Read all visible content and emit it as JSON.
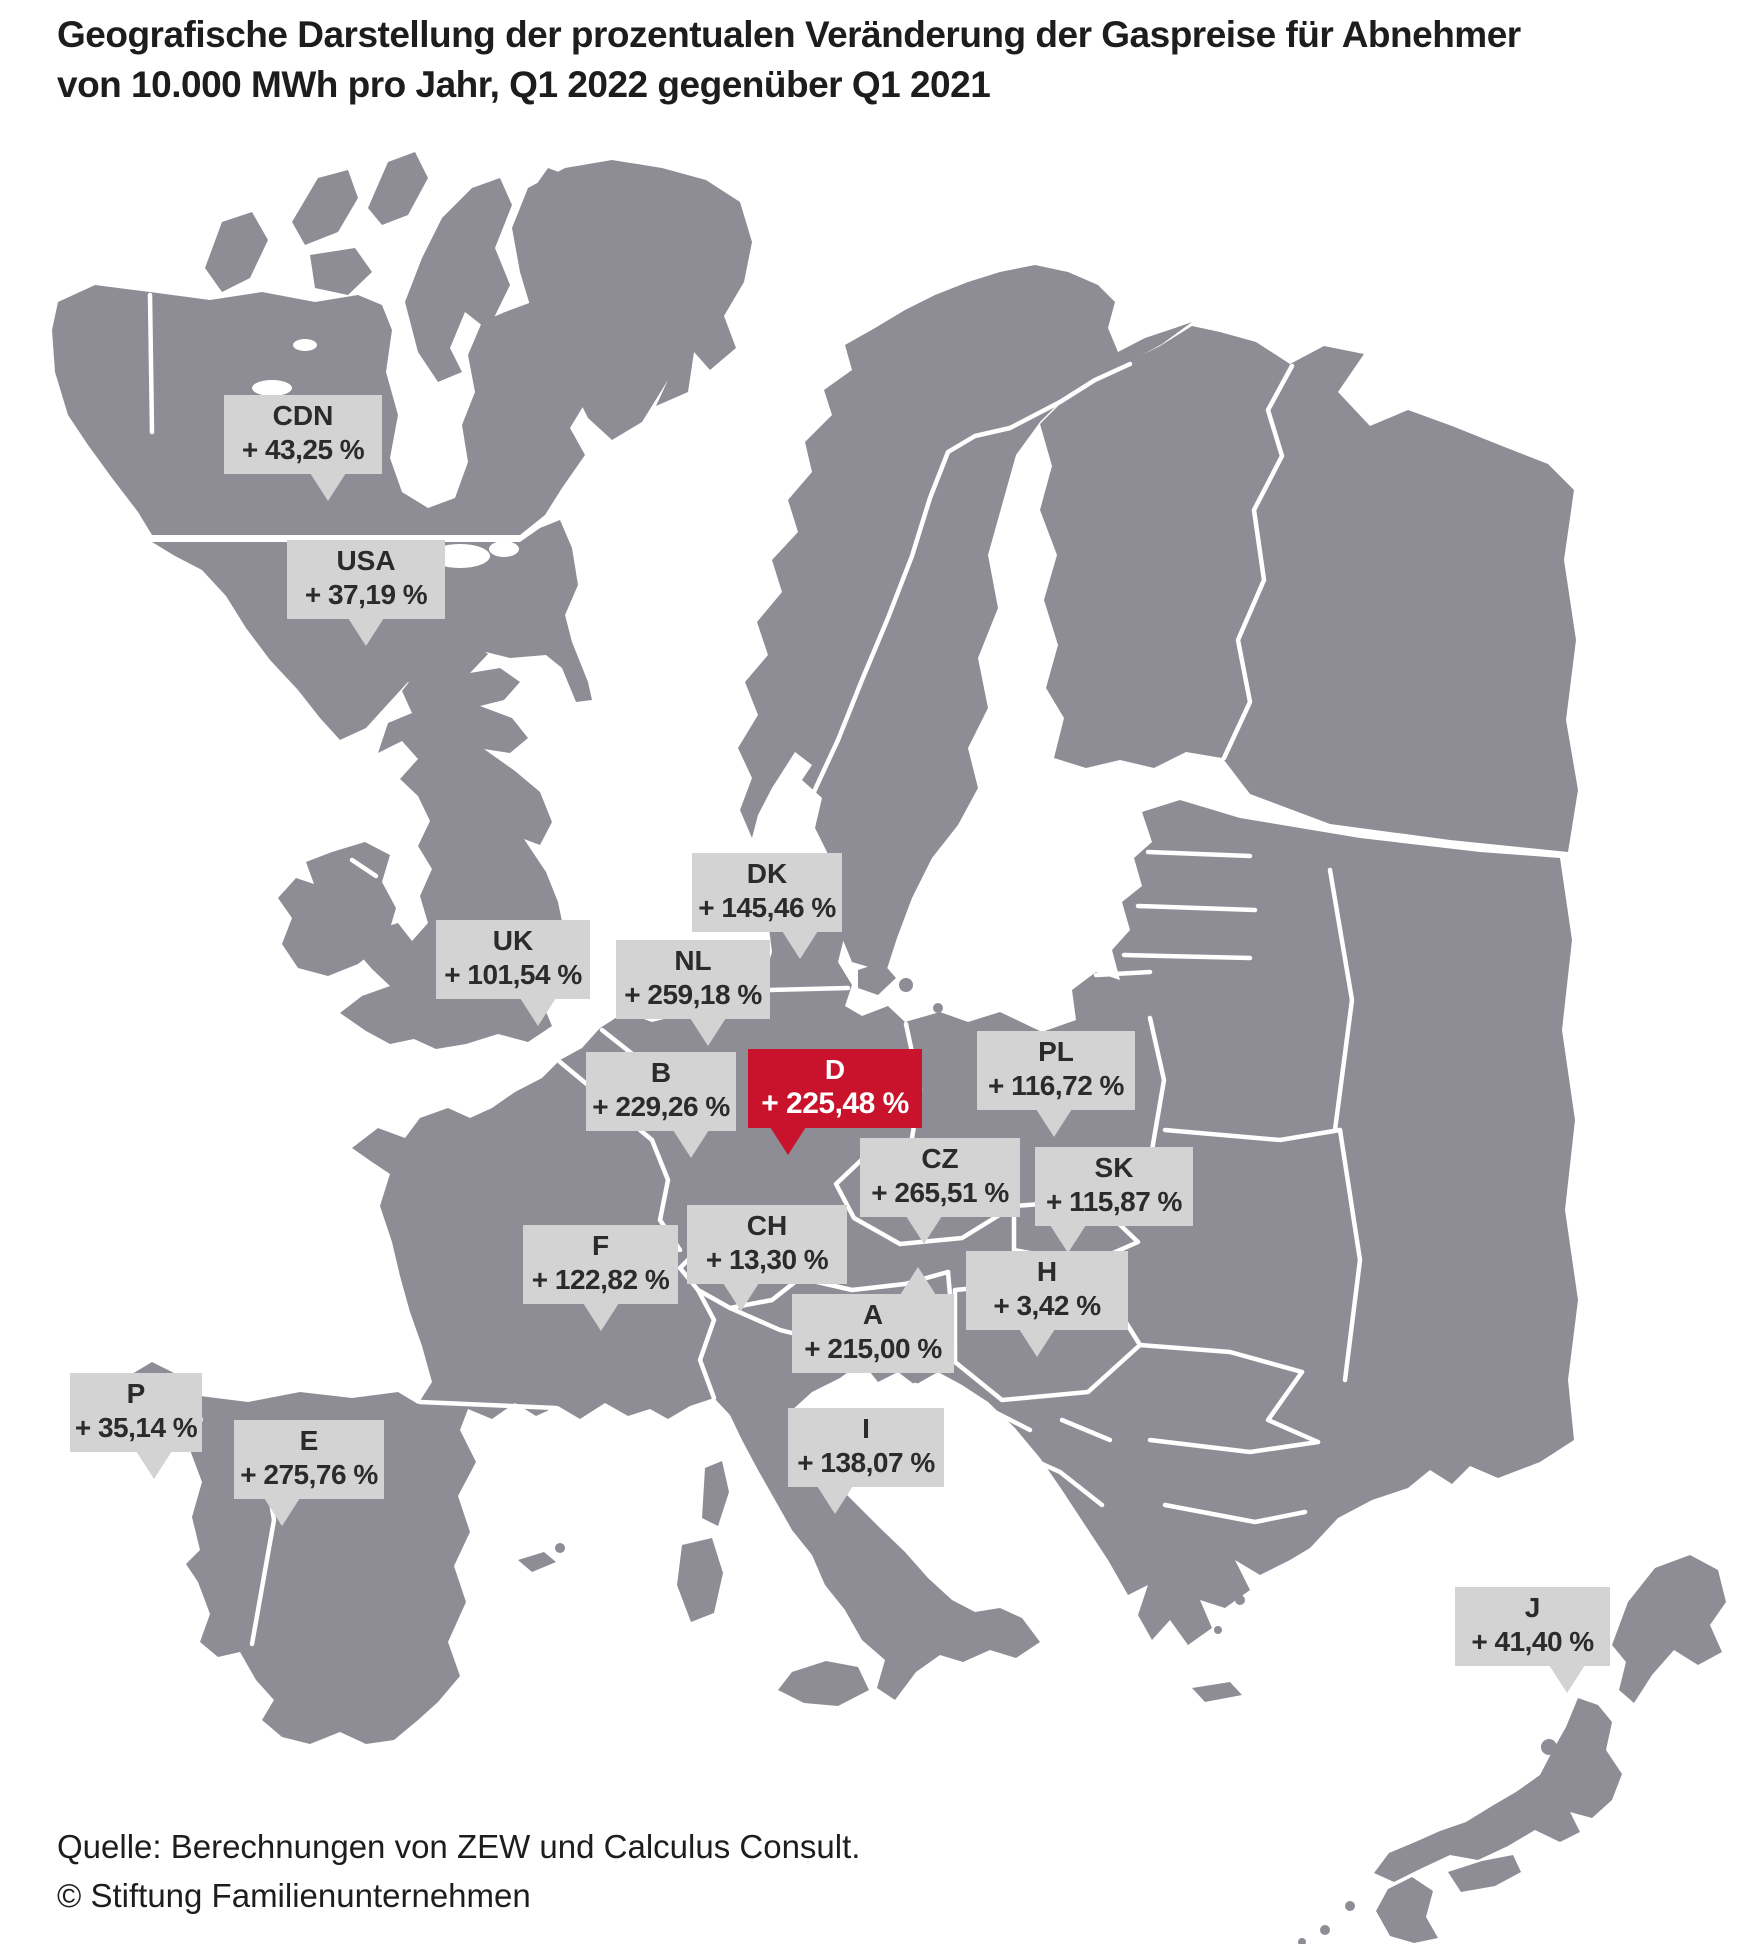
{
  "title": {
    "line1": "Geografische Darstellung der prozentualen Veränderung der Gaspreise für Abnehmer",
    "line2": "von 10.000 MWh pro Jahr, Q1 2022 gegenüber Q1 2021"
  },
  "source": {
    "line1": "Quelle: Berechnungen von ZEW und Calculus Consult.",
    "line2": "© Stiftung Familienunternehmen"
  },
  "colors": {
    "land": "#8e8d95",
    "sea": "#ffffff",
    "label_background": "#d3d3d4",
    "label_text": "#2b2b29",
    "highlight_background": "#c9122c",
    "highlight_text": "#ffffff"
  },
  "labels": [
    {
      "code": "CDN",
      "country": "Canada",
      "value": "+ 43,25 %",
      "highlight": false
    },
    {
      "code": "USA",
      "country": "United States",
      "value": "+ 37,19 %",
      "highlight": false
    },
    {
      "code": "DK",
      "country": "Denmark",
      "value": "+ 145,46 %",
      "highlight": false
    },
    {
      "code": "UK",
      "country": "United Kingdom",
      "value": "+ 101,54 %",
      "highlight": false
    },
    {
      "code": "NL",
      "country": "Netherlands",
      "value": "+ 259,18 %",
      "highlight": false
    },
    {
      "code": "B",
      "country": "Belgium",
      "value": "+ 229,26 %",
      "highlight": false
    },
    {
      "code": "D",
      "country": "Germany",
      "value": "+ 225,48 %",
      "highlight": true
    },
    {
      "code": "PL",
      "country": "Poland",
      "value": "+ 116,72 %",
      "highlight": false
    },
    {
      "code": "CZ",
      "country": "Czech Republic",
      "value": "+ 265,51 %",
      "highlight": false
    },
    {
      "code": "SK",
      "country": "Slovakia",
      "value": "+ 115,87 %",
      "highlight": false
    },
    {
      "code": "F",
      "country": "France",
      "value": "+ 122,82 %",
      "highlight": false
    },
    {
      "code": "CH",
      "country": "Switzerland",
      "value": "+ 13,30 %",
      "highlight": false
    },
    {
      "code": "A",
      "country": "Austria",
      "value": "+ 215,00 %",
      "highlight": false
    },
    {
      "code": "H",
      "country": "Hungary",
      "value": "+ 3,42 %",
      "highlight": false
    },
    {
      "code": "P",
      "country": "Portugal",
      "value": "+ 35,14 %",
      "highlight": false
    },
    {
      "code": "E",
      "country": "Spain",
      "value": "+ 275,76 %",
      "highlight": false
    },
    {
      "code": "I",
      "country": "Italy",
      "value": "+ 138,07 %",
      "highlight": false
    },
    {
      "code": "J",
      "country": "Japan",
      "value": "+ 41,40 %",
      "highlight": false
    }
  ],
  "chart_data": {
    "type": "map",
    "title": "Geografische Darstellung der prozentualen Veränderung der Gaspreise für Abnehmer von 10.000 MWh pro Jahr, Q1 2022 gegenüber Q1 2021",
    "unit": "percent change Q1 2022 vs Q1 2021",
    "highlighted": "D",
    "series": [
      {
        "code": "CDN",
        "country": "Canada",
        "value_pct": 43.25
      },
      {
        "code": "USA",
        "country": "United States",
        "value_pct": 37.19
      },
      {
        "code": "DK",
        "country": "Denmark",
        "value_pct": 145.46
      },
      {
        "code": "UK",
        "country": "United Kingdom",
        "value_pct": 101.54
      },
      {
        "code": "NL",
        "country": "Netherlands",
        "value_pct": 259.18
      },
      {
        "code": "B",
        "country": "Belgium",
        "value_pct": 229.26
      },
      {
        "code": "D",
        "country": "Germany",
        "value_pct": 225.48
      },
      {
        "code": "PL",
        "country": "Poland",
        "value_pct": 116.72
      },
      {
        "code": "CZ",
        "country": "Czech Republic",
        "value_pct": 265.51
      },
      {
        "code": "SK",
        "country": "Slovakia",
        "value_pct": 115.87
      },
      {
        "code": "F",
        "country": "France",
        "value_pct": 122.82
      },
      {
        "code": "CH",
        "country": "Switzerland",
        "value_pct": 13.3
      },
      {
        "code": "A",
        "country": "Austria",
        "value_pct": 215.0
      },
      {
        "code": "H",
        "country": "Hungary",
        "value_pct": 3.42
      },
      {
        "code": "P",
        "country": "Portugal",
        "value_pct": 35.14
      },
      {
        "code": "E",
        "country": "Spain",
        "value_pct": 275.76
      },
      {
        "code": "I",
        "country": "Italy",
        "value_pct": 138.07
      },
      {
        "code": "J",
        "country": "Japan",
        "value_pct": 41.4
      }
    ]
  }
}
